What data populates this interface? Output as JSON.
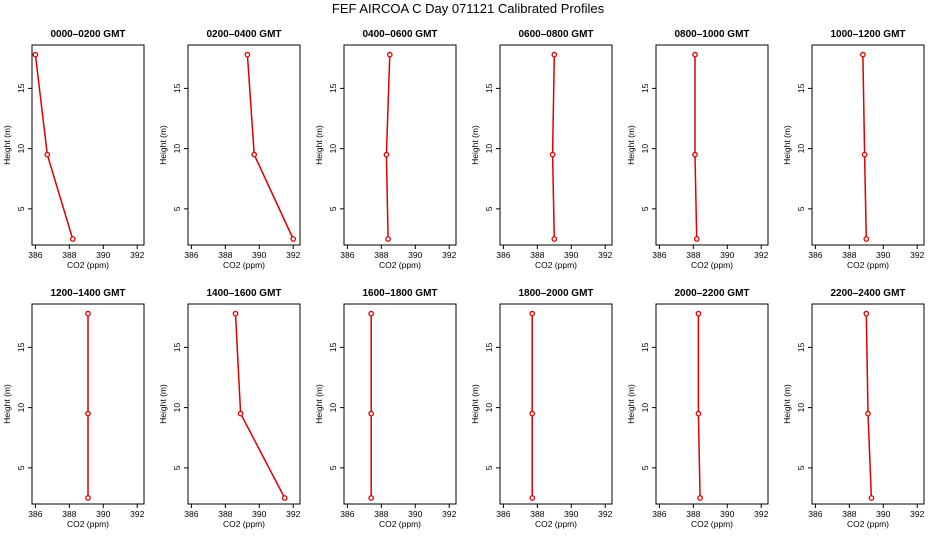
{
  "title": "FEF AIRCOA C  Day 071121  Calibrated Profiles",
  "chart_data": {
    "type": "line",
    "title": "FEF AIRCOA C  Day 071121  Calibrated Profiles",
    "xlabel": "CO2 (ppm)",
    "ylabel": "Height (m)",
    "xlim": [
      385.8,
      392.4
    ],
    "ylim": [
      2,
      18.6
    ],
    "x_ticks": [
      386,
      388,
      390,
      392
    ],
    "y_ticks": [
      5,
      10,
      15
    ],
    "heights": [
      2.5,
      9.5,
      17.8
    ],
    "series_color": "#dd0000",
    "panels": [
      {
        "name": "0000–0200 GMT",
        "co2": [
          388.2,
          386.7,
          386.0
        ]
      },
      {
        "name": "0200–0400 GMT",
        "co2": [
          392.0,
          389.7,
          389.3
        ]
      },
      {
        "name": "0400–0600 GMT",
        "co2": [
          388.4,
          388.3,
          388.5
        ]
      },
      {
        "name": "0600–0800 GMT",
        "co2": [
          389.0,
          388.9,
          389.0
        ]
      },
      {
        "name": "0800–1000 GMT",
        "co2": [
          388.2,
          388.1,
          388.1
        ]
      },
      {
        "name": "1000–1200 GMT",
        "co2": [
          389.0,
          388.9,
          388.8
        ]
      },
      {
        "name": "1200–1400 GMT",
        "co2": [
          389.1,
          389.1,
          389.1
        ]
      },
      {
        "name": "1400–1600 GMT",
        "co2": [
          391.5,
          388.9,
          388.6
        ]
      },
      {
        "name": "1600–1800 GMT",
        "co2": [
          387.4,
          387.4,
          387.4
        ]
      },
      {
        "name": "1800–2000 GMT",
        "co2": [
          387.7,
          387.7,
          387.7
        ]
      },
      {
        "name": "2000–2200 GMT",
        "co2": [
          388.4,
          388.3,
          388.3
        ]
      },
      {
        "name": "2200–2400 GMT",
        "co2": [
          389.3,
          389.1,
          389.0
        ]
      }
    ]
  }
}
